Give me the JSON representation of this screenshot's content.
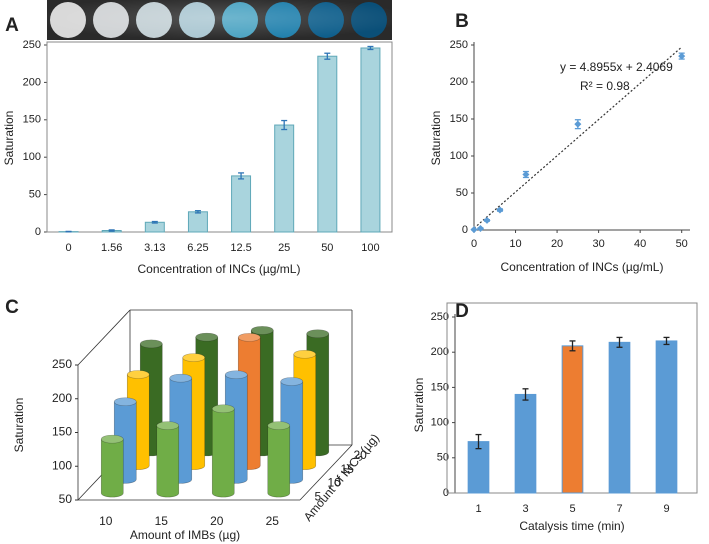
{
  "chart_data": [
    {
      "type": "bar",
      "panel": "A",
      "xlabel": "Concentration of INCs (µg/mL)",
      "ylabel": "Saturation",
      "categories": [
        "0",
        "1.56",
        "3.13",
        "6.25",
        "12.5",
        "25",
        "50",
        "100"
      ],
      "values": [
        0.5,
        2,
        13,
        27,
        75,
        143,
        235,
        246
      ],
      "errors": [
        0.3,
        0.8,
        1,
        1.5,
        4,
        6,
        4,
        2
      ],
      "color": "#a9d4dd",
      "edge_color": "#5fa8b8",
      "error_color": "#2e75b6",
      "ylim": [
        0,
        250
      ],
      "yticks": [
        0,
        50,
        100,
        150,
        200,
        250
      ]
    },
    {
      "type": "scatter",
      "panel": "B",
      "xlabel": "Concentration of INCs (µg/mL)",
      "ylabel": "Saturation",
      "x": [
        0,
        1.56,
        3.13,
        6.25,
        12.5,
        25,
        50
      ],
      "values": [
        0.5,
        2,
        13,
        27,
        75,
        143,
        235
      ],
      "errors": [
        0.3,
        0.8,
        1,
        1.5,
        4,
        6,
        4
      ],
      "color": "#5b9bd5",
      "trendline": {
        "slope": 4.8955,
        "intercept": 2.4069
      },
      "annotations": [
        "y = 4.8955x + 2.4069",
        "R² = 0.98"
      ],
      "xlim": [
        0,
        52
      ],
      "xticks": [
        0,
        10,
        20,
        30,
        40,
        50
      ],
      "ylim": [
        0,
        250
      ],
      "yticks": [
        0,
        50,
        100,
        150,
        200,
        250
      ]
    },
    {
      "type": "bar3d",
      "panel": "C",
      "xlabel": "Amount of IMBs (µg)",
      "depth_label": "Amount of INCs (µg)",
      "ylabel": "Saturation",
      "categories": [
        "10",
        "15",
        "20",
        "25"
      ],
      "series": [
        {
          "name": "5",
          "color": "#70ad47",
          "values": [
            130,
            150,
            175,
            150
          ]
        },
        {
          "name": "10",
          "color": "#5b9bd5",
          "values": [
            165,
            200,
            205,
            195
          ]
        },
        {
          "name": "15",
          "color": "#ffc000",
          "values": [
            185,
            210,
            240,
            215
          ],
          "highlight": {
            "index": 2,
            "color": "#ed7d31"
          }
        },
        {
          "name": "20",
          "color": "#3a6b23",
          "values": [
            210,
            220,
            230,
            225
          ]
        }
      ],
      "ylim": [
        50,
        250
      ],
      "yticks": [
        50,
        100,
        150,
        200,
        250
      ]
    },
    {
      "type": "bar",
      "panel": "D",
      "xlabel": "Catalysis time (min)",
      "ylabel": "Saturation",
      "categories": [
        "1",
        "3",
        "5",
        "7",
        "9"
      ],
      "values": [
        73,
        140,
        209,
        214,
        216
      ],
      "errors": [
        10,
        8,
        7,
        7,
        5
      ],
      "color": "#5b9bd5",
      "edge_color": "#5b9bd5",
      "error_color": "#222",
      "highlight": {
        "index": 2,
        "color": "#ed7d31"
      },
      "ylim": [
        0,
        250
      ],
      "yticks": [
        0,
        50,
        100,
        150,
        200,
        250
      ]
    }
  ]
}
